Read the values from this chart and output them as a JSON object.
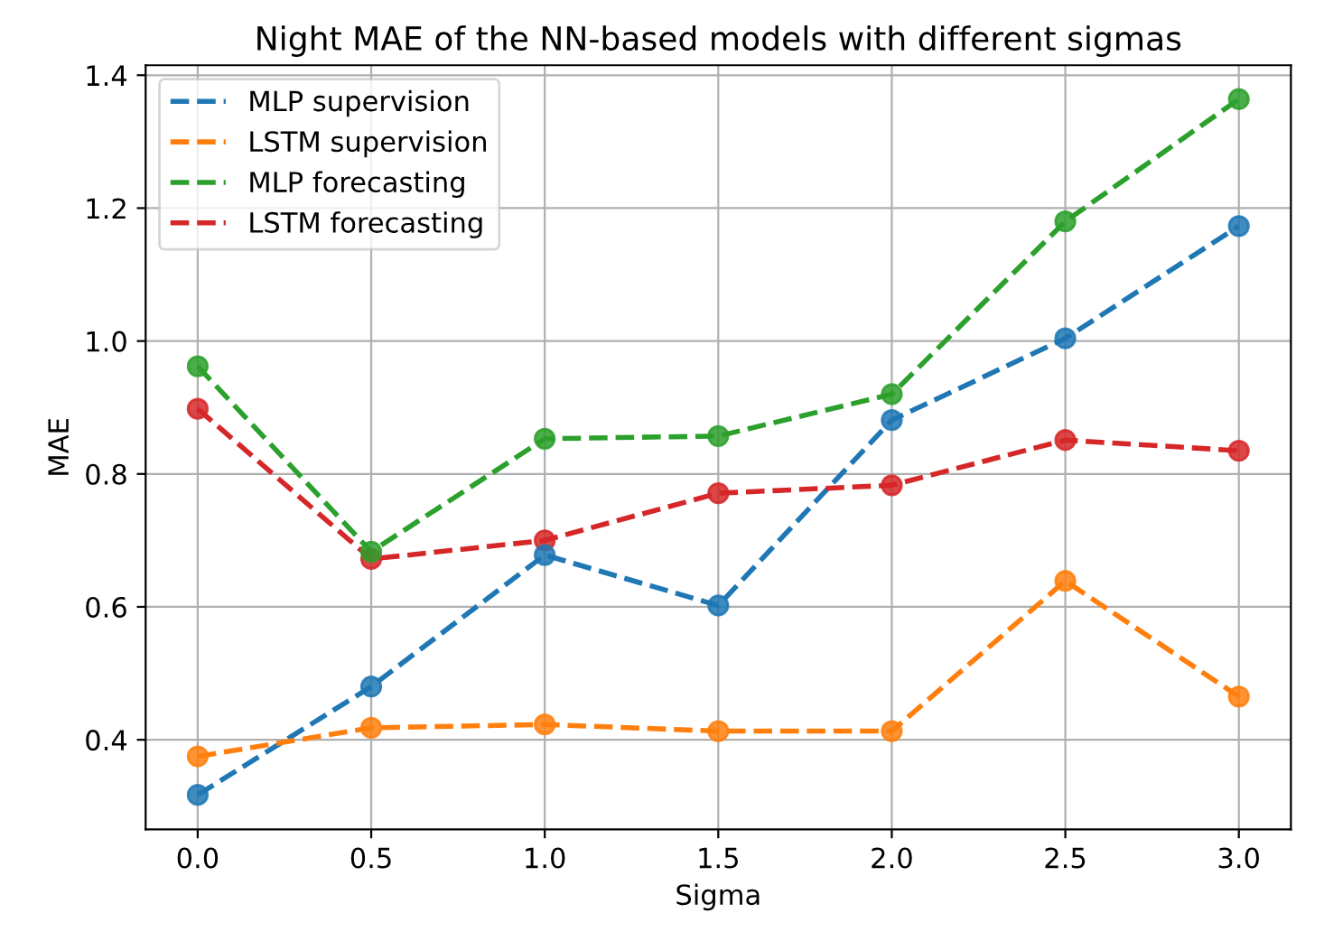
{
  "chart_data": {
    "type": "line",
    "title": "Night MAE of the NN-based models with different sigmas",
    "xlabel": "Sigma",
    "ylabel": "MAE",
    "x": [
      0.0,
      0.5,
      1.0,
      1.5,
      2.0,
      2.5,
      3.0
    ],
    "series": [
      {
        "name": "MLP supervision",
        "color": "#1f77b4",
        "values": [
          0.317,
          0.48,
          0.678,
          0.602,
          0.881,
          1.004,
          1.173
        ]
      },
      {
        "name": "LSTM supervision",
        "color": "#ff7f0e",
        "values": [
          0.375,
          0.418,
          0.423,
          0.413,
          0.413,
          0.639,
          0.465
        ]
      },
      {
        "name": "MLP forecasting",
        "color": "#2ca02c",
        "values": [
          0.962,
          0.683,
          0.853,
          0.857,
          0.92,
          1.18,
          1.364
        ]
      },
      {
        "name": "LSTM forecasting",
        "color": "#d62728",
        "values": [
          0.898,
          0.672,
          0.7,
          0.771,
          0.783,
          0.851,
          0.835
        ]
      }
    ],
    "xlim": [
      -0.15,
      3.15
    ],
    "ylim": [
      0.265,
      1.415
    ],
    "xticks": [
      {
        "value": 0.0,
        "label": "0.0"
      },
      {
        "value": 0.5,
        "label": "0.5"
      },
      {
        "value": 1.0,
        "label": "1.0"
      },
      {
        "value": 1.5,
        "label": "1.5"
      },
      {
        "value": 2.0,
        "label": "2.0"
      },
      {
        "value": 2.5,
        "label": "2.5"
      },
      {
        "value": 3.0,
        "label": "3.0"
      }
    ],
    "yticks": [
      {
        "value": 0.4,
        "label": "0.4"
      },
      {
        "value": 0.6,
        "label": "0.6"
      },
      {
        "value": 0.8,
        "label": "0.8"
      },
      {
        "value": 1.0,
        "label": "1.0"
      },
      {
        "value": 1.2,
        "label": "1.2"
      },
      {
        "value": 1.4,
        "label": "1.4"
      }
    ],
    "grid": true,
    "legend": "top left",
    "marker": "circle",
    "line_style": "dashed"
  }
}
